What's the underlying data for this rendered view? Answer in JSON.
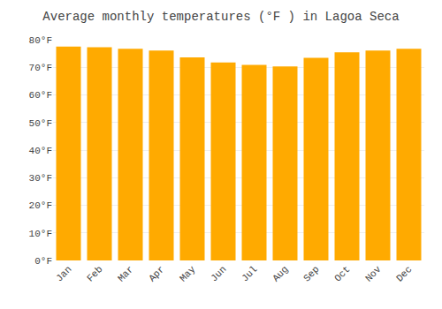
{
  "chart_data": {
    "type": "bar",
    "title": "Average monthly temperatures (°F ) in Lagoa Seca",
    "categories": [
      "Jan",
      "Feb",
      "Mar",
      "Apr",
      "May",
      "Jun",
      "Jul",
      "Aug",
      "Sep",
      "Oct",
      "Nov",
      "Dec"
    ],
    "values": [
      77.5,
      77.3,
      76.7,
      76.1,
      73.6,
      71.8,
      70.9,
      70.3,
      73.4,
      75.4,
      76.1,
      76.7
    ],
    "color": "#FFAA00",
    "ylim": [
      0,
      80
    ],
    "yticks": [
      {
        "value": 0,
        "label": "0°F"
      },
      {
        "value": 10,
        "label": "10°F"
      },
      {
        "value": 20,
        "label": "20°F"
      },
      {
        "value": 30,
        "label": "30°F"
      },
      {
        "value": 40,
        "label": "40°F"
      },
      {
        "value": 50,
        "label": "50°F"
      },
      {
        "value": 60,
        "label": "60°F"
      },
      {
        "value": 70,
        "label": "70°F"
      },
      {
        "value": 80,
        "label": "80°F"
      }
    ],
    "grid": true
  }
}
